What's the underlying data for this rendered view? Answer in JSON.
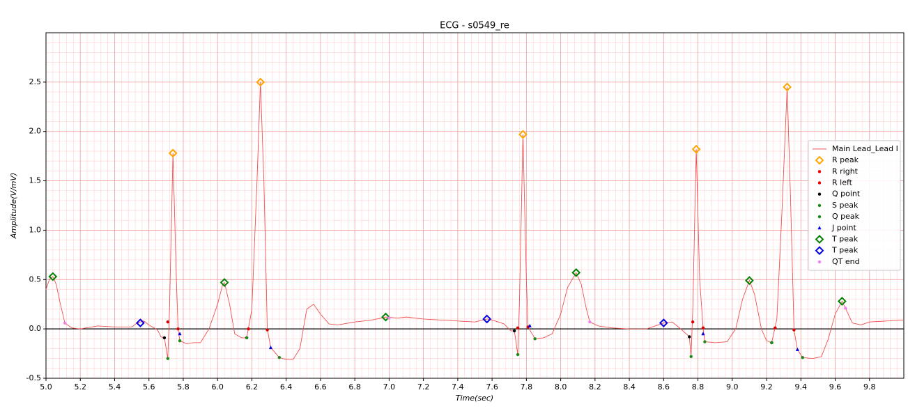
{
  "chart_data": {
    "type": "line",
    "title": "ECG - s0549_re",
    "x_label": "Time(sec)",
    "y_label": "Amplitude(V/mV)",
    "xlim": [
      5,
      10
    ],
    "ylim": [
      -0.5,
      3
    ],
    "xticks": [
      {
        "value": 5,
        "label": "5.0"
      },
      5.2,
      5.4,
      5.6,
      5.8,
      {
        "value": 6,
        "label": "6.0"
      },
      6.2,
      6.4,
      6.6,
      6.8,
      {
        "value": 7,
        "label": "7.0"
      },
      7.2,
      7.4,
      7.6,
      7.8,
      {
        "value": 8,
        "label": "8.0"
      },
      8.2,
      8.4,
      8.6,
      8.8,
      {
        "value": 9,
        "label": "9.0"
      },
      9.2,
      9.4,
      9.6,
      9.8
    ],
    "yticks": [
      -0.5,
      {
        "value": 0,
        "label": "0.0"
      },
      0.5,
      {
        "value": 1,
        "label": "1.0"
      },
      1.5,
      {
        "value": 2,
        "label": "2.0"
      },
      2.5
    ],
    "grid": true,
    "legend": "center right",
    "series": [
      {
        "name": "Main Lead_Lead I",
        "color": "#f05050",
        "marker": "line",
        "x": [
          5.0,
          5.02,
          5.04,
          5.06,
          5.08,
          5.11,
          5.15,
          5.2,
          5.3,
          5.4,
          5.5,
          5.53,
          5.57,
          5.6,
          5.65,
          5.67,
          5.69,
          5.71,
          5.72,
          5.74,
          5.76,
          5.77,
          5.78,
          5.82,
          5.86,
          5.9,
          5.95,
          6.0,
          6.03,
          6.04,
          6.07,
          6.1,
          6.14,
          6.17,
          6.2,
          6.23,
          6.25,
          6.27,
          6.29,
          6.31,
          6.36,
          6.4,
          6.44,
          6.48,
          6.52,
          6.56,
          6.6,
          6.65,
          6.7,
          6.8,
          6.9,
          6.98,
          7.05,
          7.1,
          7.2,
          7.3,
          7.4,
          7.5,
          7.57,
          7.62,
          7.67,
          7.71,
          7.73,
          7.75,
          7.76,
          7.78,
          7.8,
          7.81,
          7.85,
          7.9,
          7.95,
          8.0,
          8.04,
          8.09,
          8.12,
          8.15,
          8.17,
          8.22,
          8.3,
          8.4,
          8.5,
          8.6,
          8.65,
          8.7,
          8.75,
          8.76,
          8.77,
          8.79,
          8.81,
          8.83,
          8.84,
          8.9,
          8.97,
          9.02,
          9.06,
          9.1,
          9.13,
          9.17,
          9.2,
          9.23,
          9.26,
          9.29,
          9.32,
          9.34,
          9.36,
          9.38,
          9.41,
          9.47,
          9.52,
          9.56,
          9.6,
          9.64,
          9.66,
          9.7,
          9.75,
          9.8,
          9.9,
          10.0
        ],
        "values": [
          0.4,
          0.5,
          0.53,
          0.45,
          0.28,
          0.06,
          0.01,
          0.0,
          0.03,
          0.02,
          0.02,
          0.06,
          0.08,
          0.04,
          -0.01,
          -0.08,
          -0.09,
          -0.3,
          0.2,
          1.78,
          0.5,
          0.0,
          -0.12,
          -0.15,
          -0.14,
          -0.14,
          0.0,
          0.25,
          0.45,
          0.47,
          0.25,
          -0.05,
          -0.09,
          -0.09,
          0.2,
          1.5,
          2.5,
          1.5,
          0.0,
          -0.19,
          -0.29,
          -0.31,
          -0.31,
          -0.2,
          0.2,
          0.25,
          0.15,
          0.05,
          0.04,
          0.07,
          0.09,
          0.12,
          0.11,
          0.12,
          0.1,
          0.09,
          0.08,
          0.07,
          0.1,
          0.08,
          0.05,
          -0.02,
          -0.02,
          -0.26,
          0.3,
          1.97,
          0.5,
          0.02,
          -0.1,
          -0.09,
          -0.05,
          0.15,
          0.42,
          0.57,
          0.45,
          0.2,
          0.07,
          0.03,
          0.01,
          0.0,
          0.0,
          0.06,
          0.07,
          0.0,
          -0.08,
          -0.28,
          0.2,
          1.82,
          0.5,
          0.01,
          -0.13,
          -0.14,
          -0.13,
          0.0,
          0.3,
          0.49,
          0.35,
          0.0,
          -0.12,
          -0.14,
          0.1,
          1.2,
          2.45,
          1.3,
          -0.01,
          -0.21,
          -0.29,
          -0.3,
          -0.28,
          -0.1,
          0.15,
          0.28,
          0.21,
          0.06,
          0.04,
          0.07,
          0.08,
          0.09
        ]
      },
      {
        "name": "R peak",
        "color": "#ffa500",
        "marker": "diamond",
        "x": [
          5.74,
          6.25,
          7.78,
          8.79,
          9.32
        ],
        "values": [
          1.78,
          2.5,
          1.97,
          1.82,
          2.45
        ]
      },
      {
        "name": "R right",
        "color": "#e00000",
        "marker": "dot",
        "x": [
          5.77,
          6.29,
          7.81,
          8.83,
          9.36
        ],
        "values": [
          0.0,
          -0.01,
          0.02,
          0.01,
          -0.01
        ]
      },
      {
        "name": "R left",
        "color": "#e00000",
        "marker": "dot",
        "x": [
          5.71,
          6.18,
          7.75,
          8.77,
          9.25
        ],
        "values": [
          0.07,
          0.0,
          0.01,
          0.07,
          0.01
        ]
      },
      {
        "name": "Q point",
        "color": "#000000",
        "marker": "dot",
        "x": [
          5.69,
          6.17,
          7.73,
          8.75,
          9.23
        ],
        "values": [
          -0.09,
          -0.09,
          -0.02,
          -0.08,
          -0.14
        ]
      },
      {
        "name": "S peak",
        "color": "#1a8a1a",
        "marker": "dot",
        "x": [
          5.78,
          6.36,
          7.85,
          8.84,
          9.41
        ],
        "values": [
          -0.12,
          -0.29,
          -0.1,
          -0.13,
          -0.29
        ]
      },
      {
        "name": "Q peak",
        "color": "#1a8a1a",
        "marker": "dot",
        "x": [
          5.71,
          6.17,
          7.75,
          8.76,
          9.23
        ],
        "values": [
          -0.3,
          -0.09,
          -0.26,
          -0.28,
          -0.14
        ]
      },
      {
        "name": "J point",
        "color": "#0000e0",
        "marker": "triangle",
        "x": [
          5.78,
          6.31,
          7.82,
          8.83,
          9.38
        ],
        "values": [
          -0.05,
          -0.19,
          0.03,
          -0.05,
          -0.21
        ]
      },
      {
        "name": "T peak",
        "color": "#008000",
        "marker": "diamond",
        "x": [
          5.04,
          6.04,
          6.98,
          8.09,
          9.1,
          9.64
        ],
        "values": [
          0.53,
          0.47,
          0.12,
          0.57,
          0.49,
          0.28
        ]
      },
      {
        "name": "T peak",
        "color": "#0000e0",
        "marker": "diamond",
        "x": [
          5.55,
          7.57,
          8.6
        ],
        "values": [
          0.06,
          0.1,
          0.06
        ]
      },
      {
        "name": "QT end",
        "color": "#ee82ee",
        "marker": "dot",
        "x": [
          5.11,
          7.0,
          8.17,
          9.66
        ],
        "values": [
          0.06,
          0.11,
          0.07,
          0.21
        ]
      }
    ]
  }
}
